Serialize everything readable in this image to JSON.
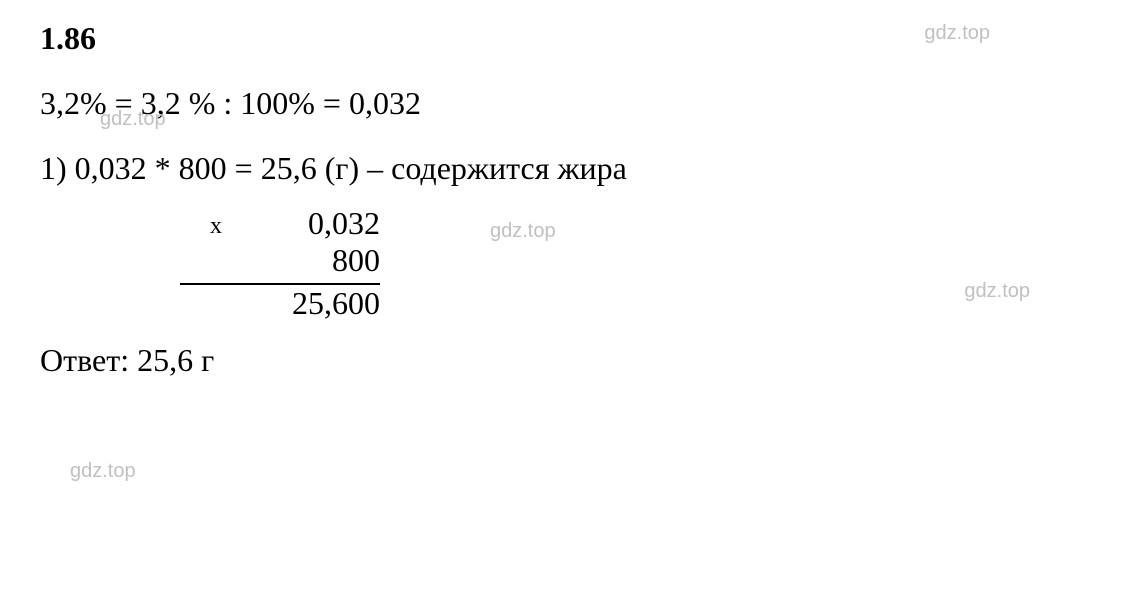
{
  "problem": {
    "number": "1.86",
    "percent_conversion": "3,2% = 3,2 % : 100% = 0,032",
    "step1": "1) 0,032 * 800 = 25,6 (г) – содержится жира",
    "multiplication": {
      "symbol": "х",
      "row1": "0,032",
      "row2": "800",
      "result": "25,600"
    },
    "answer": "Ответ: 25,6 г"
  },
  "watermarks": {
    "text": "gdz.top"
  },
  "styling": {
    "background_color": "#ffffff",
    "text_color": "#000000",
    "watermark_color": "#c0c0c0",
    "font_family": "Times New Roman",
    "font_size_main": 32,
    "font_size_watermark": 20,
    "line_color": "#000000"
  }
}
